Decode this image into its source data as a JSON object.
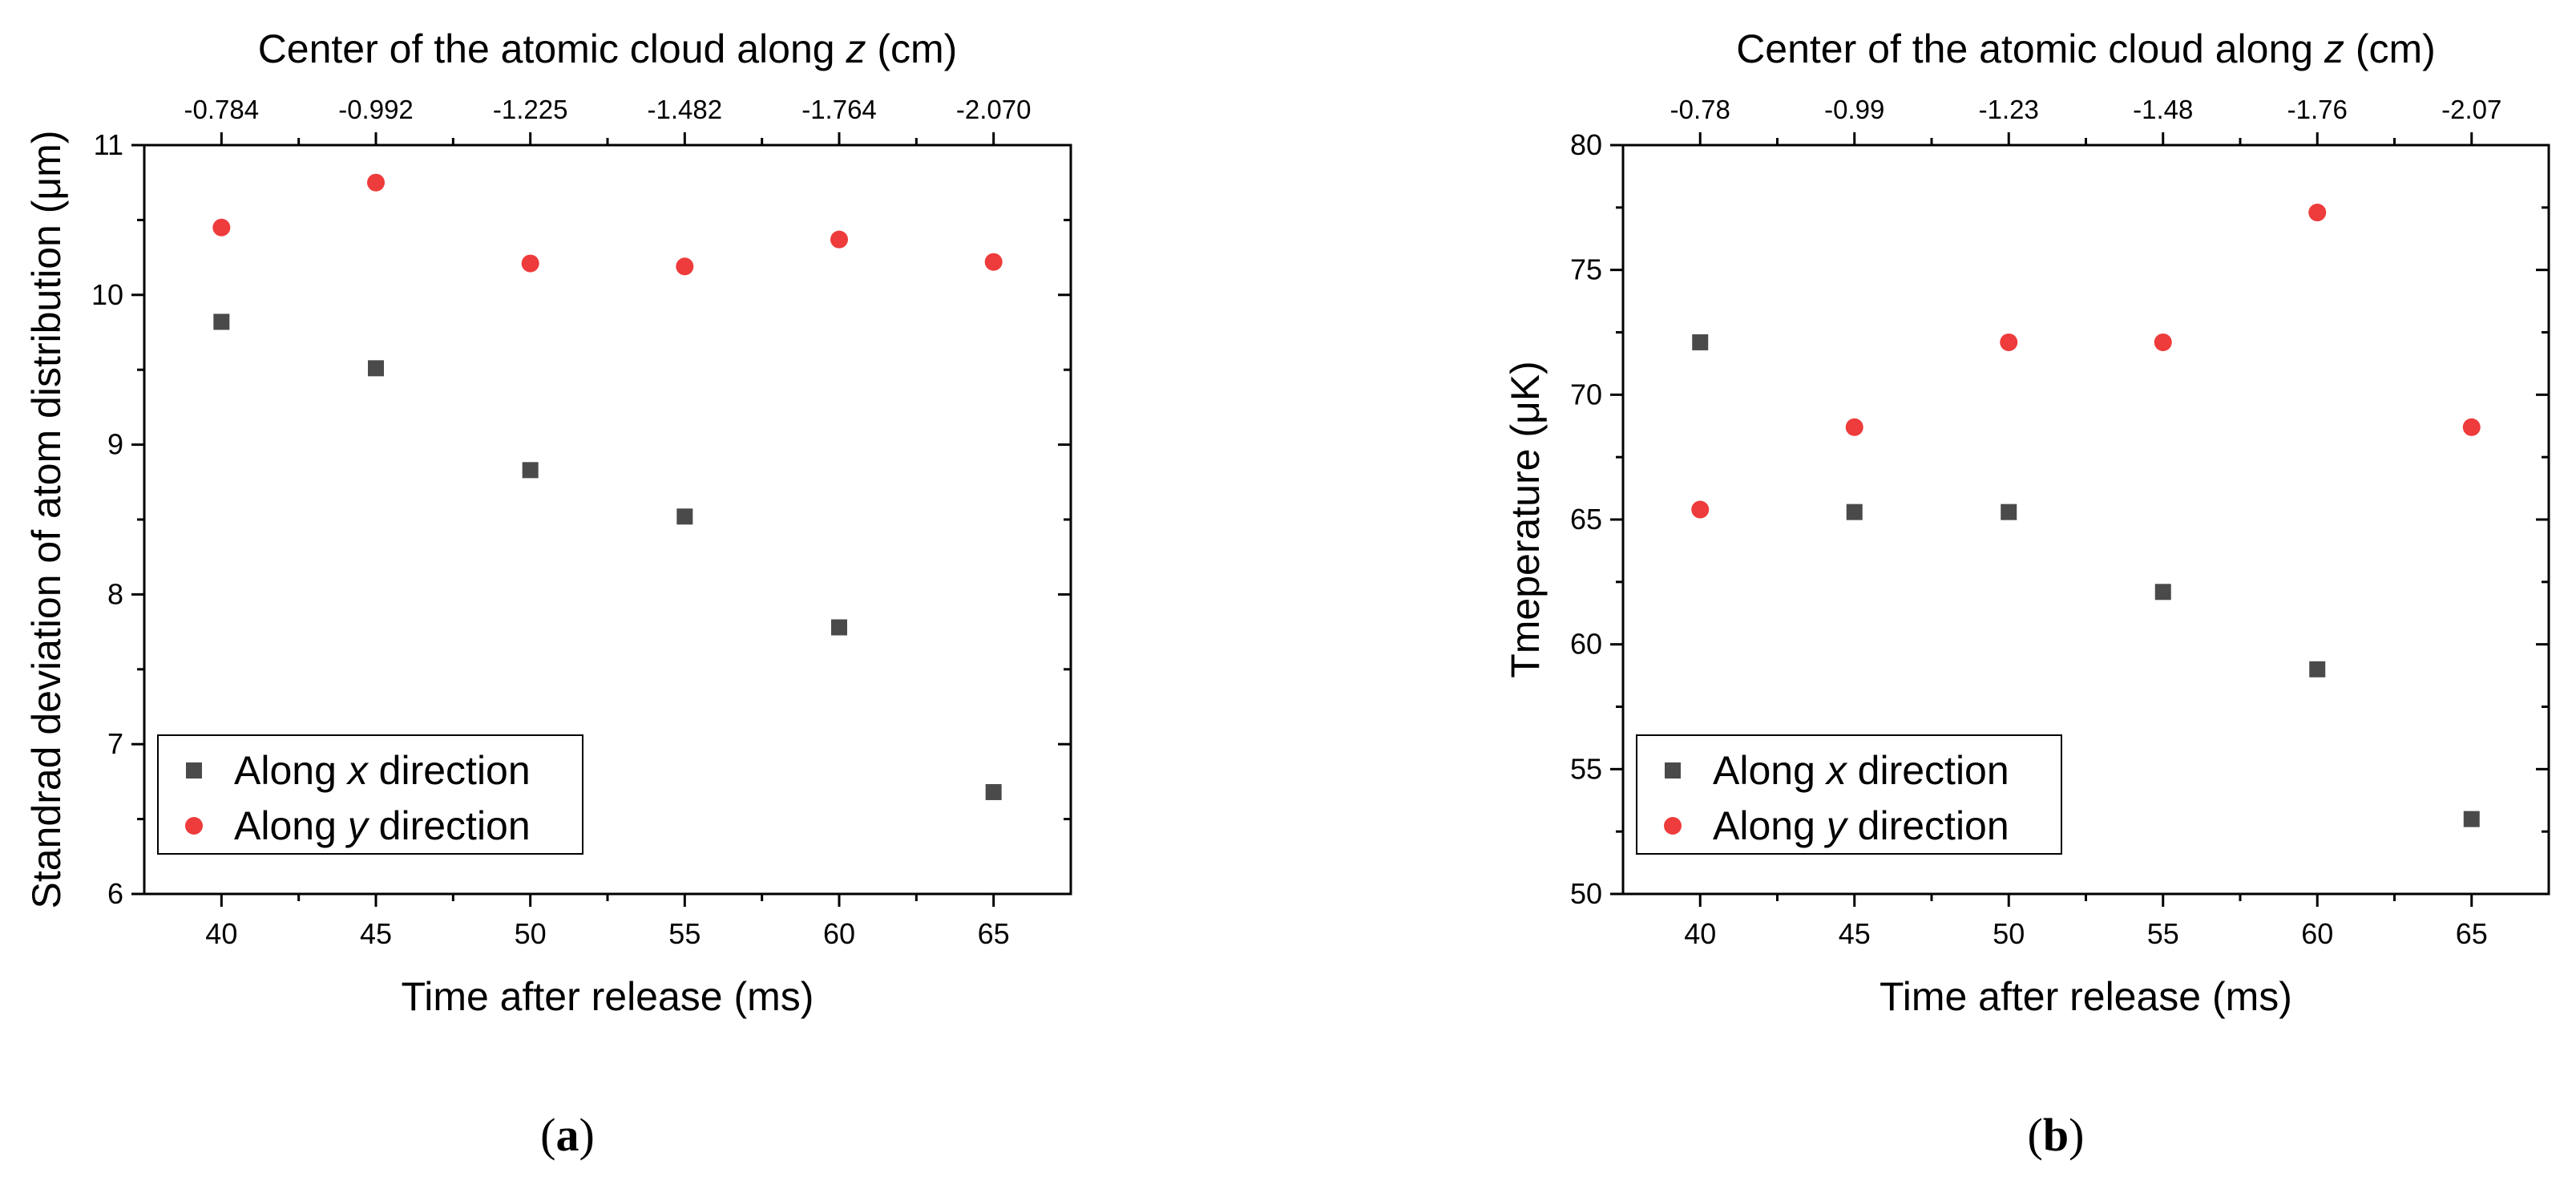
{
  "chart_data": [
    {
      "panel": "(a)",
      "panel_letter": "a",
      "type": "scatter",
      "top_title_prefix": "Center of the atomic cloud along ",
      "top_title_var": "z",
      "top_title_suffix": " (cm)",
      "top_ticks": [
        "-0.784",
        "-0.992",
        "-1.225",
        "-1.482",
        "-1.764",
        "-2.070"
      ],
      "xlabel": "Time after release (ms)",
      "ylabel": "Standrad deviation of atom distribution (μm)",
      "xlim": [
        37.5,
        67.5
      ],
      "ylim": [
        6,
        11
      ],
      "xticks": [
        40,
        45,
        50,
        55,
        60,
        65
      ],
      "yticks": [
        6,
        7,
        8,
        9,
        10,
        11
      ],
      "legend_position": "bottom-left",
      "series": [
        {
          "name_prefix": "Along ",
          "name_var": "x",
          "name_suffix": " direction",
          "marker": "square",
          "color": "#4a4a4a",
          "x": [
            40,
            45,
            50,
            55,
            60,
            65
          ],
          "y": [
            9.82,
            9.51,
            8.83,
            8.52,
            7.78,
            6.68
          ]
        },
        {
          "name_prefix": "Along ",
          "name_var": "y",
          "name_suffix": " direction",
          "marker": "circle",
          "color": "#ee3b3b",
          "x": [
            40,
            45,
            50,
            55,
            60,
            65
          ],
          "y": [
            10.45,
            10.75,
            10.21,
            10.19,
            10.37,
            10.22
          ]
        }
      ]
    },
    {
      "panel": "(b)",
      "panel_letter": "b",
      "type": "scatter",
      "top_title_prefix": "Center of the atomic cloud along ",
      "top_title_var": "z",
      "top_title_suffix": " (cm)",
      "top_ticks": [
        "-0.78",
        "-0.99",
        "-1.23",
        "-1.48",
        "-1.76",
        "-2.07"
      ],
      "xlabel": "Time after release (ms)",
      "ylabel": "Tmeperature (μK)",
      "xlim": [
        37.5,
        67.5
      ],
      "ylim": [
        50,
        80
      ],
      "xticks": [
        40,
        45,
        50,
        55,
        60,
        65
      ],
      "yticks": [
        50,
        55,
        60,
        65,
        70,
        75,
        80
      ],
      "legend_position": "bottom-left",
      "series": [
        {
          "name_prefix": "Along ",
          "name_var": "x",
          "name_suffix": " direction",
          "marker": "square",
          "color": "#4a4a4a",
          "x": [
            40,
            45,
            50,
            55,
            60,
            65
          ],
          "y": [
            72.1,
            65.3,
            65.3,
            62.1,
            59.0,
            53.0
          ]
        },
        {
          "name_prefix": "Along ",
          "name_var": "y",
          "name_suffix": " direction",
          "marker": "circle",
          "color": "#ee3b3b",
          "x": [
            40,
            45,
            50,
            55,
            60,
            65
          ],
          "y": [
            65.4,
            68.7,
            72.1,
            72.1,
            77.3,
            68.7
          ]
        }
      ]
    }
  ]
}
